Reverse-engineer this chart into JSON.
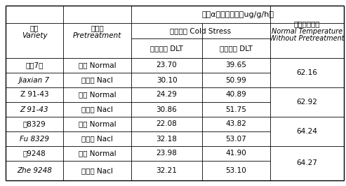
{
  "title_main": "鲜根α萘胺氧化量（ug/g/h）",
  "col_group1": "低温胁迫 Cold Stress",
  "col_group2_line1": "常温无预处理",
  "col_group2_line2": "Normal Temperature",
  "col_group2_line3": "Without Pretreatment",
  "header_variety_zh": "品种",
  "header_variety_en": "Variety",
  "header_pretreatment_zh": "预处理",
  "header_pretreatment_en": "Pretreatment",
  "header_cold_zh": "低温测定 DLT",
  "header_normal_zh": "常温测定 DLT",
  "rows": [
    [
      "嘉籼7号",
      "Jiaxian 7",
      "正常 Normal",
      "氯化钠 Nacl",
      "23.70",
      "30.10",
      "39.65",
      "50.99",
      "62.16"
    ],
    [
      "Z 91-43",
      "Z 91-43",
      "正常 Normal",
      "氯化钠 Nacl",
      "24.29",
      "30.86",
      "40.89",
      "51.75",
      "62.92"
    ],
    [
      "辐8329",
      "Fu 8329",
      "正常 Normal",
      "氯化钠 Nacl",
      "22.08",
      "32.18",
      "43.82",
      "53.07",
      "64.24"
    ],
    [
      "浙9248",
      "Zhe 9248",
      "正常 Normal",
      "氯化钠 Nacl",
      "23.98",
      "32.21",
      "41.90",
      "53.10",
      "64.27"
    ]
  ],
  "bg_color": "#ffffff",
  "text_color": "#000000",
  "font_size": 7.5
}
